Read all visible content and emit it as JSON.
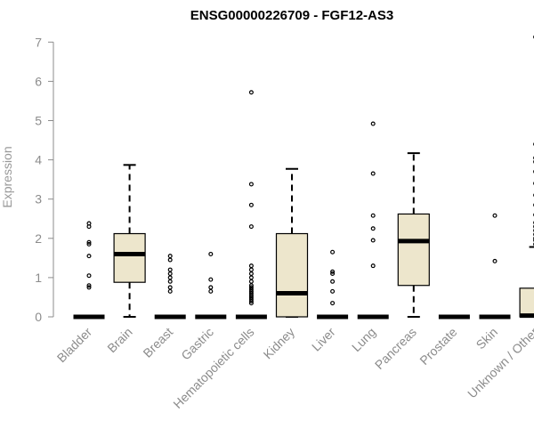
{
  "chart_data": {
    "type": "box",
    "title": "ENSG00000226709 - FGF12-AS3",
    "xlabel": "",
    "ylabel": "Expression",
    "ylim": [
      0,
      7.2
    ],
    "yticks": [
      0,
      1,
      2,
      3,
      4,
      5,
      6,
      7
    ],
    "colors": {
      "box_fill": "#ede6cc",
      "stroke": "#000000",
      "axis": "#8c8c8c",
      "text": "#8c8c8c"
    },
    "groups": [
      {
        "name": "Bladder",
        "q1": 0,
        "median": 0,
        "q3": 0,
        "whisker_low": 0,
        "whisker_high": 0,
        "outliers": [
          0.75,
          0.8,
          1.05,
          1.55,
          1.85,
          1.9,
          2.3,
          2.38
        ]
      },
      {
        "name": "Brain",
        "q1": 0.88,
        "median": 1.6,
        "q3": 2.12,
        "whisker_low": 0,
        "whisker_high": 3.87,
        "outliers": []
      },
      {
        "name": "Breast",
        "q1": 0,
        "median": 0,
        "q3": 0,
        "whisker_low": 0,
        "whisker_high": 0,
        "outliers": [
          0.65,
          0.75,
          0.9,
          1.0,
          1.1,
          1.2,
          1.45,
          1.55
        ]
      },
      {
        "name": "Gastric",
        "q1": 0,
        "median": 0,
        "q3": 0,
        "whisker_low": 0,
        "whisker_high": 0,
        "outliers": [
          0.65,
          0.75,
          0.95,
          1.6
        ]
      },
      {
        "name": "Hematopoietic cells",
        "q1": 0,
        "median": 0,
        "q3": 0,
        "whisker_low": 0,
        "whisker_high": 0,
        "outliers": [
          0.35,
          0.4,
          0.45,
          0.5,
          0.55,
          0.6,
          0.65,
          0.7,
          0.75,
          0.8,
          0.9,
          1.0,
          1.1,
          1.2,
          1.3,
          2.3,
          2.85,
          3.38,
          5.72
        ]
      },
      {
        "name": "Kidney",
        "q1": 0,
        "median": 0.6,
        "q3": 2.12,
        "whisker_low": 0,
        "whisker_high": 3.77,
        "outliers": []
      },
      {
        "name": "Liver",
        "q1": 0,
        "median": 0,
        "q3": 0,
        "whisker_low": 0,
        "whisker_high": 0,
        "outliers": [
          0.35,
          0.65,
          0.9,
          1.1,
          1.15,
          1.65
        ]
      },
      {
        "name": "Lung",
        "q1": 0,
        "median": 0,
        "q3": 0,
        "whisker_low": 0,
        "whisker_high": 0,
        "outliers": [
          1.3,
          1.95,
          2.25,
          2.58,
          3.65,
          4.92
        ]
      },
      {
        "name": "Pancreas",
        "q1": 0.8,
        "median": 1.93,
        "q3": 2.62,
        "whisker_low": 0,
        "whisker_high": 4.17,
        "outliers": []
      },
      {
        "name": "Prostate",
        "q1": 0,
        "median": 0,
        "q3": 0,
        "whisker_low": 0,
        "whisker_high": 0,
        "outliers": []
      },
      {
        "name": "Skin",
        "q1": 0,
        "median": 0,
        "q3": 0,
        "whisker_low": 0,
        "whisker_high": 0,
        "outliers": [
          1.42,
          2.58
        ]
      },
      {
        "name": "Unknown / Other",
        "q1": 0,
        "median": 0.03,
        "q3": 0.73,
        "whisker_low": 0,
        "whisker_high": 1.78,
        "outliers": [
          1.85,
          1.95,
          2.0,
          2.1,
          2.2,
          2.3,
          2.4,
          2.6,
          2.85,
          3.1,
          3.4,
          3.7,
          3.95,
          4.05,
          4.4,
          7.13
        ]
      }
    ]
  }
}
